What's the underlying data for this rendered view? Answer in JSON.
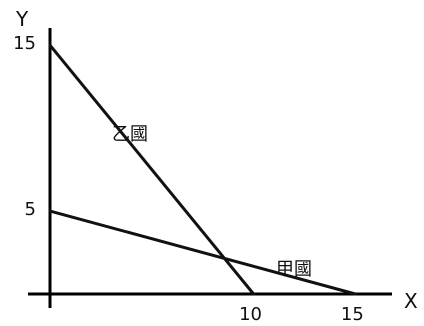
{
  "chart_data": {
    "type": "line",
    "title": "",
    "xlabel": "X",
    "ylabel": "Y",
    "xlim": [
      0,
      16.8
    ],
    "ylim": [
      0,
      17
    ],
    "grid": false,
    "x_ticks": [
      10,
      15
    ],
    "y_ticks": [
      5,
      15
    ],
    "series": [
      {
        "name": "乙國",
        "points": [
          {
            "x": 0,
            "y": 15
          },
          {
            "x": 10,
            "y": 0
          }
        ]
      },
      {
        "name": "甲國",
        "points": [
          {
            "x": 0,
            "y": 5
          },
          {
            "x": 15,
            "y": 0
          }
        ]
      }
    ]
  }
}
